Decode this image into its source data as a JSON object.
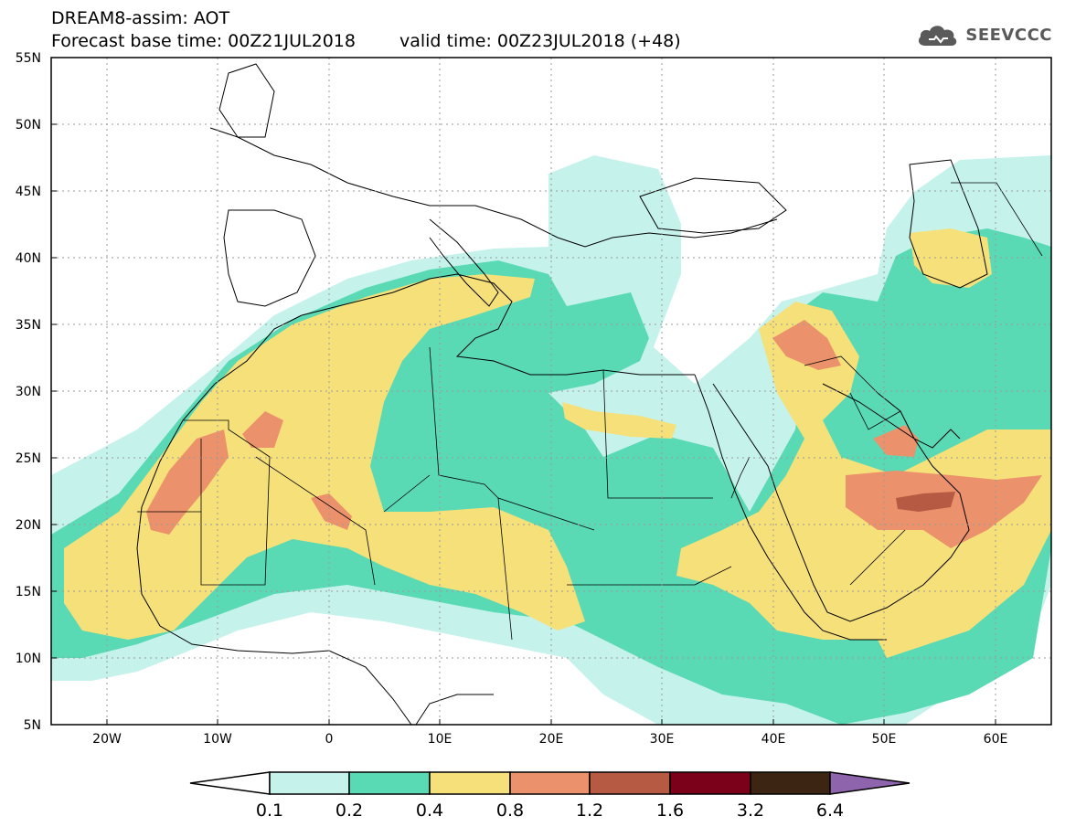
{
  "header": {
    "line1": "DREAM8-assim: AOT",
    "base_label": "Forecast base time: 00Z21JUL2018",
    "valid_label": "valid time: 00Z23JUL2018 (+48)"
  },
  "logo": {
    "text": "SEEVCCC",
    "icon": "cloud-icon"
  },
  "axes": {
    "lon_range": [
      -25,
      65
    ],
    "lat_range": [
      5,
      55
    ],
    "y_ticks": [
      "5N",
      "10N",
      "15N",
      "20N",
      "25N",
      "30N",
      "35N",
      "40N",
      "45N",
      "50N",
      "55N"
    ],
    "x_ticks": [
      "20W",
      "10W",
      "0",
      "10E",
      "20E",
      "30E",
      "40E",
      "50E",
      "60E"
    ]
  },
  "colorbar": {
    "labels": [
      "0.1",
      "0.2",
      "0.4",
      "0.8",
      "1.2",
      "1.6",
      "3.2",
      "6.4"
    ],
    "colors": [
      "#c6f2ec",
      "#5ad9b5",
      "#f5e07a",
      "#eb916b",
      "#b75a44",
      "#7b0019",
      "#3c2512",
      "#8e64ad"
    ]
  },
  "colors": {
    "very_light": "#c6f2ec",
    "light": "#5ad9b5",
    "moderate": "#f5e07a",
    "high": "#eb916b",
    "very_high": "#b75a44"
  }
}
